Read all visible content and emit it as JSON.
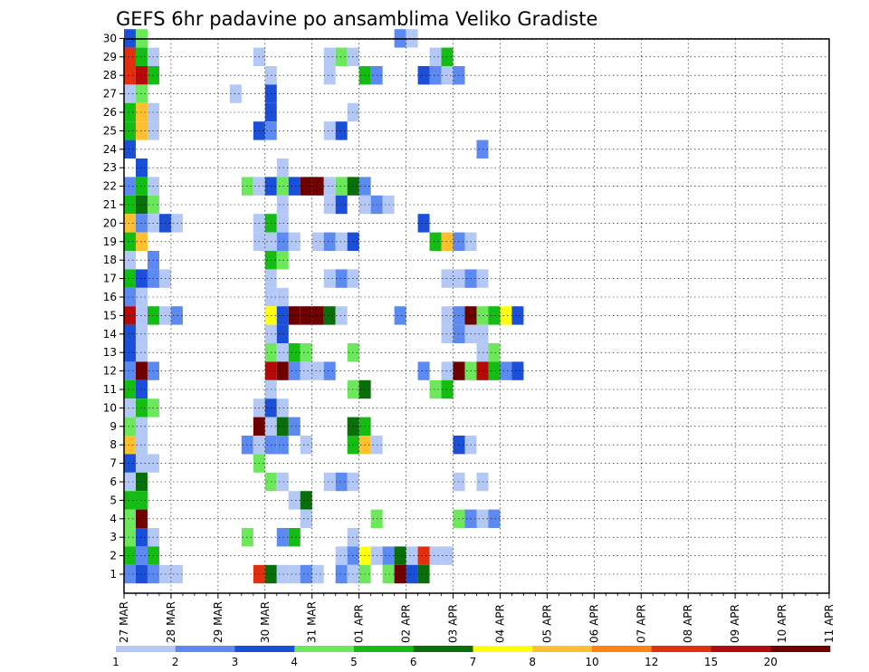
{
  "chart_data": {
    "type": "heatmap",
    "title": "GEFS 6hr padavine po ansamblima Veliko Gradiste",
    "xlabel": "",
    "ylabel": "",
    "y_ticks": [
      "1",
      "2",
      "3",
      "4",
      "5",
      "6",
      "7",
      "8",
      "9",
      "10",
      "11",
      "12",
      "13",
      "14",
      "15",
      "16",
      "17",
      "18",
      "19",
      "20",
      "21",
      "22",
      "23",
      "24",
      "25",
      "26",
      "27",
      "28",
      "29",
      "30"
    ],
    "x_ticks": [
      "27 MAR",
      "28 MAR",
      "29 MAR",
      "30 MAR",
      "31 MAR",
      "01 APR",
      "02 APR",
      "03 APR",
      "04 APR",
      "05 APR",
      "06 APR",
      "07 APR",
      "08 APR",
      "09 APR",
      "10 APR",
      "11 APR"
    ],
    "time_step_hours": 6,
    "x_range": [
      "2025-03-27T00",
      "2025-04-11T00"
    ],
    "y_range": [
      1,
      30
    ],
    "grid": "dotted",
    "colorbar": {
      "position": "bottom",
      "labels": [
        "1",
        "2",
        "3",
        "4",
        "5",
        "6",
        "7",
        "8",
        "10",
        "12",
        "15",
        "20"
      ],
      "bounds": [
        1,
        2,
        3,
        4,
        5,
        6,
        7,
        8,
        10,
        12,
        15,
        20,
        30
      ],
      "colors": [
        "#b4c8f5",
        "#5c8af0",
        "#1c4fd8",
        "#6de85c",
        "#14bc14",
        "#0a6e0a",
        "#ffff14",
        "#ffc030",
        "#ff8410",
        "#e03010",
        "#b40a0a",
        "#6e0000"
      ]
    },
    "cell_value_min": 1,
    "cells": [
      {
        "m": 30,
        "s": [
          [
            0,
            3
          ],
          [
            1,
            4
          ],
          [
            23,
            2
          ],
          [
            24,
            1
          ]
        ]
      },
      {
        "m": 29,
        "s": [
          [
            0,
            10
          ],
          [
            1,
            5
          ],
          [
            2,
            1
          ],
          [
            11,
            1
          ],
          [
            17,
            1
          ],
          [
            18,
            4
          ],
          [
            19,
            1
          ],
          [
            26,
            1
          ],
          [
            27,
            5
          ]
        ]
      },
      {
        "m": 28,
        "s": [
          [
            0,
            10
          ],
          [
            1,
            11
          ],
          [
            2,
            5
          ],
          [
            12,
            1
          ],
          [
            17,
            1
          ],
          [
            20,
            5
          ],
          [
            21,
            2
          ],
          [
            25,
            3
          ],
          [
            26,
            2
          ],
          [
            27,
            1
          ],
          [
            28,
            2
          ]
        ]
      },
      {
        "m": 27,
        "s": [
          [
            0,
            1
          ],
          [
            1,
            4
          ],
          [
            9,
            1
          ],
          [
            12,
            3
          ]
        ]
      },
      {
        "m": 26,
        "s": [
          [
            0,
            5
          ],
          [
            1,
            8
          ],
          [
            2,
            1
          ],
          [
            12,
            3
          ],
          [
            19,
            1
          ]
        ]
      },
      {
        "m": 25,
        "s": [
          [
            0,
            5
          ],
          [
            1,
            8
          ],
          [
            2,
            1
          ],
          [
            11,
            3
          ],
          [
            12,
            2
          ],
          [
            17,
            1
          ],
          [
            18,
            3
          ]
        ]
      },
      {
        "m": 24,
        "s": [
          [
            0,
            3
          ],
          [
            30,
            2
          ]
        ]
      },
      {
        "m": 23,
        "s": [
          [
            1,
            3
          ],
          [
            13,
            1
          ]
        ]
      },
      {
        "m": 22,
        "s": [
          [
            0,
            2
          ],
          [
            1,
            5
          ],
          [
            2,
            1
          ],
          [
            10,
            4
          ],
          [
            11,
            1
          ],
          [
            12,
            3
          ],
          [
            13,
            4
          ],
          [
            14,
            3
          ],
          [
            15,
            14
          ],
          [
            16,
            20
          ],
          [
            17,
            1
          ],
          [
            18,
            4
          ],
          [
            19,
            6
          ],
          [
            20,
            2
          ]
        ]
      },
      {
        "m": 21,
        "s": [
          [
            0,
            5
          ],
          [
            1,
            6
          ],
          [
            2,
            4
          ],
          [
            13,
            1
          ],
          [
            17,
            1
          ],
          [
            18,
            3
          ],
          [
            20,
            1
          ],
          [
            21,
            2
          ],
          [
            22,
            1
          ]
        ]
      },
      {
        "m": 20,
        "s": [
          [
            0,
            8
          ],
          [
            1,
            2
          ],
          [
            2,
            1
          ],
          [
            3,
            3
          ],
          [
            4,
            1
          ],
          [
            11,
            1
          ],
          [
            12,
            5
          ],
          [
            13,
            1
          ],
          [
            25,
            3
          ]
        ]
      },
      {
        "m": 19,
        "s": [
          [
            0,
            5
          ],
          [
            1,
            8
          ],
          [
            11,
            1
          ],
          [
            12,
            1
          ],
          [
            13,
            2
          ],
          [
            14,
            1
          ],
          [
            16,
            1
          ],
          [
            17,
            2
          ],
          [
            18,
            1
          ],
          [
            19,
            3
          ],
          [
            26,
            5
          ],
          [
            27,
            8
          ],
          [
            28,
            2
          ],
          [
            29,
            1
          ]
        ]
      },
      {
        "m": 18,
        "s": [
          [
            0,
            1
          ],
          [
            2,
            2
          ],
          [
            12,
            5
          ],
          [
            13,
            4
          ]
        ]
      },
      {
        "m": 17,
        "s": [
          [
            0,
            5
          ],
          [
            1,
            3
          ],
          [
            2,
            2
          ],
          [
            3,
            1
          ],
          [
            12,
            1
          ],
          [
            17,
            1
          ],
          [
            18,
            2
          ],
          [
            19,
            1
          ],
          [
            27,
            1
          ],
          [
            28,
            1
          ],
          [
            29,
            2
          ],
          [
            30,
            1
          ]
        ]
      },
      {
        "m": 16,
        "s": [
          [
            0,
            2
          ],
          [
            1,
            1
          ],
          [
            12,
            1
          ],
          [
            13,
            1
          ]
        ]
      },
      {
        "m": 15,
        "s": [
          [
            0,
            11
          ],
          [
            1,
            1
          ],
          [
            2,
            5
          ],
          [
            3,
            1
          ],
          [
            4,
            2
          ],
          [
            12,
            7
          ],
          [
            13,
            3
          ],
          [
            14,
            15
          ],
          [
            15,
            15
          ],
          [
            16,
            14
          ],
          [
            17,
            6
          ],
          [
            18,
            1
          ],
          [
            23,
            2
          ],
          [
            27,
            1
          ],
          [
            28,
            2
          ],
          [
            29,
            14
          ],
          [
            30,
            4
          ],
          [
            31,
            5
          ],
          [
            32,
            7
          ],
          [
            33,
            3
          ]
        ]
      },
      {
        "m": 14,
        "s": [
          [
            0,
            3
          ],
          [
            1,
            1
          ],
          [
            12,
            1
          ],
          [
            13,
            3
          ],
          [
            27,
            1
          ],
          [
            28,
            2
          ],
          [
            29,
            1
          ],
          [
            30,
            1
          ]
        ]
      },
      {
        "m": 13,
        "s": [
          [
            0,
            3
          ],
          [
            1,
            1
          ],
          [
            12,
            4
          ],
          [
            13,
            1
          ],
          [
            14,
            5
          ],
          [
            15,
            4
          ],
          [
            19,
            4
          ],
          [
            30,
            1
          ],
          [
            31,
            4
          ]
        ]
      },
      {
        "m": 12,
        "s": [
          [
            0,
            2
          ],
          [
            1,
            14
          ],
          [
            2,
            2
          ],
          [
            12,
            11
          ],
          [
            13,
            14
          ],
          [
            14,
            2
          ],
          [
            15,
            1
          ],
          [
            16,
            1
          ],
          [
            17,
            2
          ],
          [
            25,
            2
          ],
          [
            27,
            1
          ],
          [
            28,
            14
          ],
          [
            29,
            4
          ],
          [
            30,
            11
          ],
          [
            31,
            5
          ],
          [
            32,
            2
          ],
          [
            33,
            3
          ]
        ]
      },
      {
        "m": 11,
        "s": [
          [
            0,
            5
          ],
          [
            1,
            3
          ],
          [
            12,
            1
          ],
          [
            19,
            4
          ],
          [
            20,
            6
          ],
          [
            26,
            4
          ],
          [
            27,
            5
          ]
        ]
      },
      {
        "m": 10,
        "s": [
          [
            0,
            1
          ],
          [
            1,
            5
          ],
          [
            2,
            4
          ],
          [
            11,
            1
          ],
          [
            12,
            3
          ],
          [
            13,
            1
          ]
        ]
      },
      {
        "m": 9,
        "s": [
          [
            0,
            4
          ],
          [
            1,
            1
          ],
          [
            11,
            14
          ],
          [
            12,
            1
          ],
          [
            13,
            6
          ],
          [
            14,
            2
          ],
          [
            19,
            6
          ],
          [
            20,
            5
          ]
        ]
      },
      {
        "m": 8,
        "s": [
          [
            0,
            8
          ],
          [
            1,
            1
          ],
          [
            10,
            2
          ],
          [
            11,
            1
          ],
          [
            12,
            2
          ],
          [
            13,
            2
          ],
          [
            15,
            1
          ],
          [
            19,
            5
          ],
          [
            20,
            8
          ],
          [
            21,
            1
          ],
          [
            28,
            3
          ],
          [
            29,
            1
          ]
        ]
      },
      {
        "m": 7,
        "s": [
          [
            0,
            3
          ],
          [
            1,
            1
          ],
          [
            2,
            1
          ],
          [
            11,
            4
          ]
        ]
      },
      {
        "m": 6,
        "s": [
          [
            0,
            1
          ],
          [
            1,
            6
          ],
          [
            12,
            4
          ],
          [
            13,
            1
          ],
          [
            17,
            1
          ],
          [
            18,
            2
          ],
          [
            19,
            1
          ],
          [
            28,
            1
          ],
          [
            30,
            1
          ]
        ]
      },
      {
        "m": 5,
        "s": [
          [
            0,
            5
          ],
          [
            1,
            5
          ],
          [
            14,
            1
          ],
          [
            15,
            6
          ]
        ]
      },
      {
        "m": 4,
        "s": [
          [
            0,
            4
          ],
          [
            1,
            14
          ],
          [
            15,
            1
          ],
          [
            21,
            4
          ],
          [
            28,
            4
          ],
          [
            29,
            2
          ],
          [
            30,
            1
          ],
          [
            31,
            2
          ]
        ]
      },
      {
        "m": 3,
        "s": [
          [
            0,
            4
          ],
          [
            1,
            3
          ],
          [
            2,
            1
          ],
          [
            10,
            4
          ],
          [
            13,
            2
          ],
          [
            14,
            5
          ],
          [
            19,
            1
          ]
        ]
      },
      {
        "m": 2,
        "s": [
          [
            0,
            5
          ],
          [
            1,
            2
          ],
          [
            2,
            5
          ],
          [
            18,
            1
          ],
          [
            19,
            2
          ],
          [
            20,
            7
          ],
          [
            21,
            1
          ],
          [
            22,
            2
          ],
          [
            23,
            6
          ],
          [
            24,
            1
          ],
          [
            25,
            10
          ],
          [
            26,
            1
          ],
          [
            27,
            1
          ]
        ]
      },
      {
        "m": 1,
        "s": [
          [
            0,
            2
          ],
          [
            1,
            3
          ],
          [
            2,
            2
          ],
          [
            3,
            1
          ],
          [
            4,
            1
          ],
          [
            11,
            10
          ],
          [
            12,
            6
          ],
          [
            13,
            1
          ],
          [
            14,
            1
          ],
          [
            15,
            2
          ],
          [
            16,
            1
          ],
          [
            18,
            2
          ],
          [
            19,
            1
          ],
          [
            20,
            4
          ],
          [
            22,
            4
          ],
          [
            23,
            14
          ],
          [
            24,
            3
          ],
          [
            25,
            6
          ]
        ]
      }
    ],
    "dates": [
      "27 MAR",
      "28 MAR",
      "29 MAR",
      "30 MAR",
      "31 MAR",
      "01 APR",
      "02 APR",
      "03 APR",
      "04 APR",
      "05 APR",
      "06 APR",
      "07 APR",
      "08 APR",
      "09 APR",
      "10 APR",
      "11 APR"
    ]
  }
}
